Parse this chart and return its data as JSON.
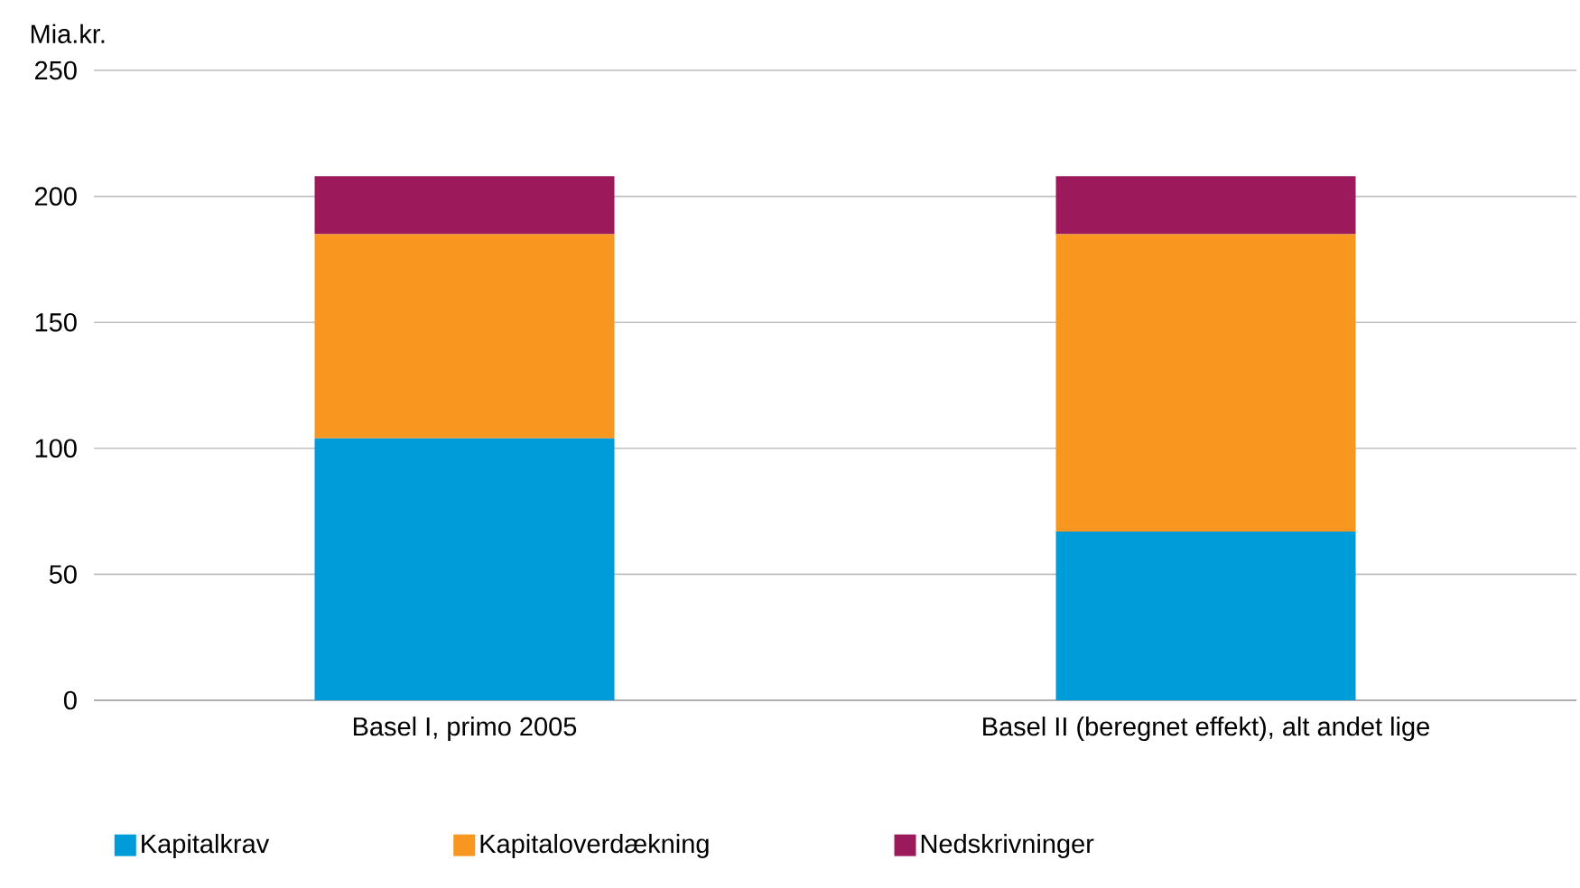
{
  "chart_data": {
    "type": "bar",
    "stacked": true,
    "ylabel": "Mia.kr.",
    "categories": [
      "Basel I, primo 2005",
      "Basel II (beregnet effekt), alt andet lige"
    ],
    "series": [
      {
        "name": "Kapitalkrav",
        "color": "#009bd9",
        "values": [
          104,
          67
        ]
      },
      {
        "name": "Kapitaloverdækning",
        "color": "#f7971f",
        "values": [
          81,
          118
        ]
      },
      {
        "name": "Nedskrivninger",
        "color": "#9c1a5c",
        "values": [
          23,
          23
        ]
      }
    ],
    "ylim": [
      0,
      250
    ],
    "yticks": [
      0,
      50,
      100,
      150,
      200,
      250
    ],
    "grid": "y",
    "legend": "bottom"
  }
}
